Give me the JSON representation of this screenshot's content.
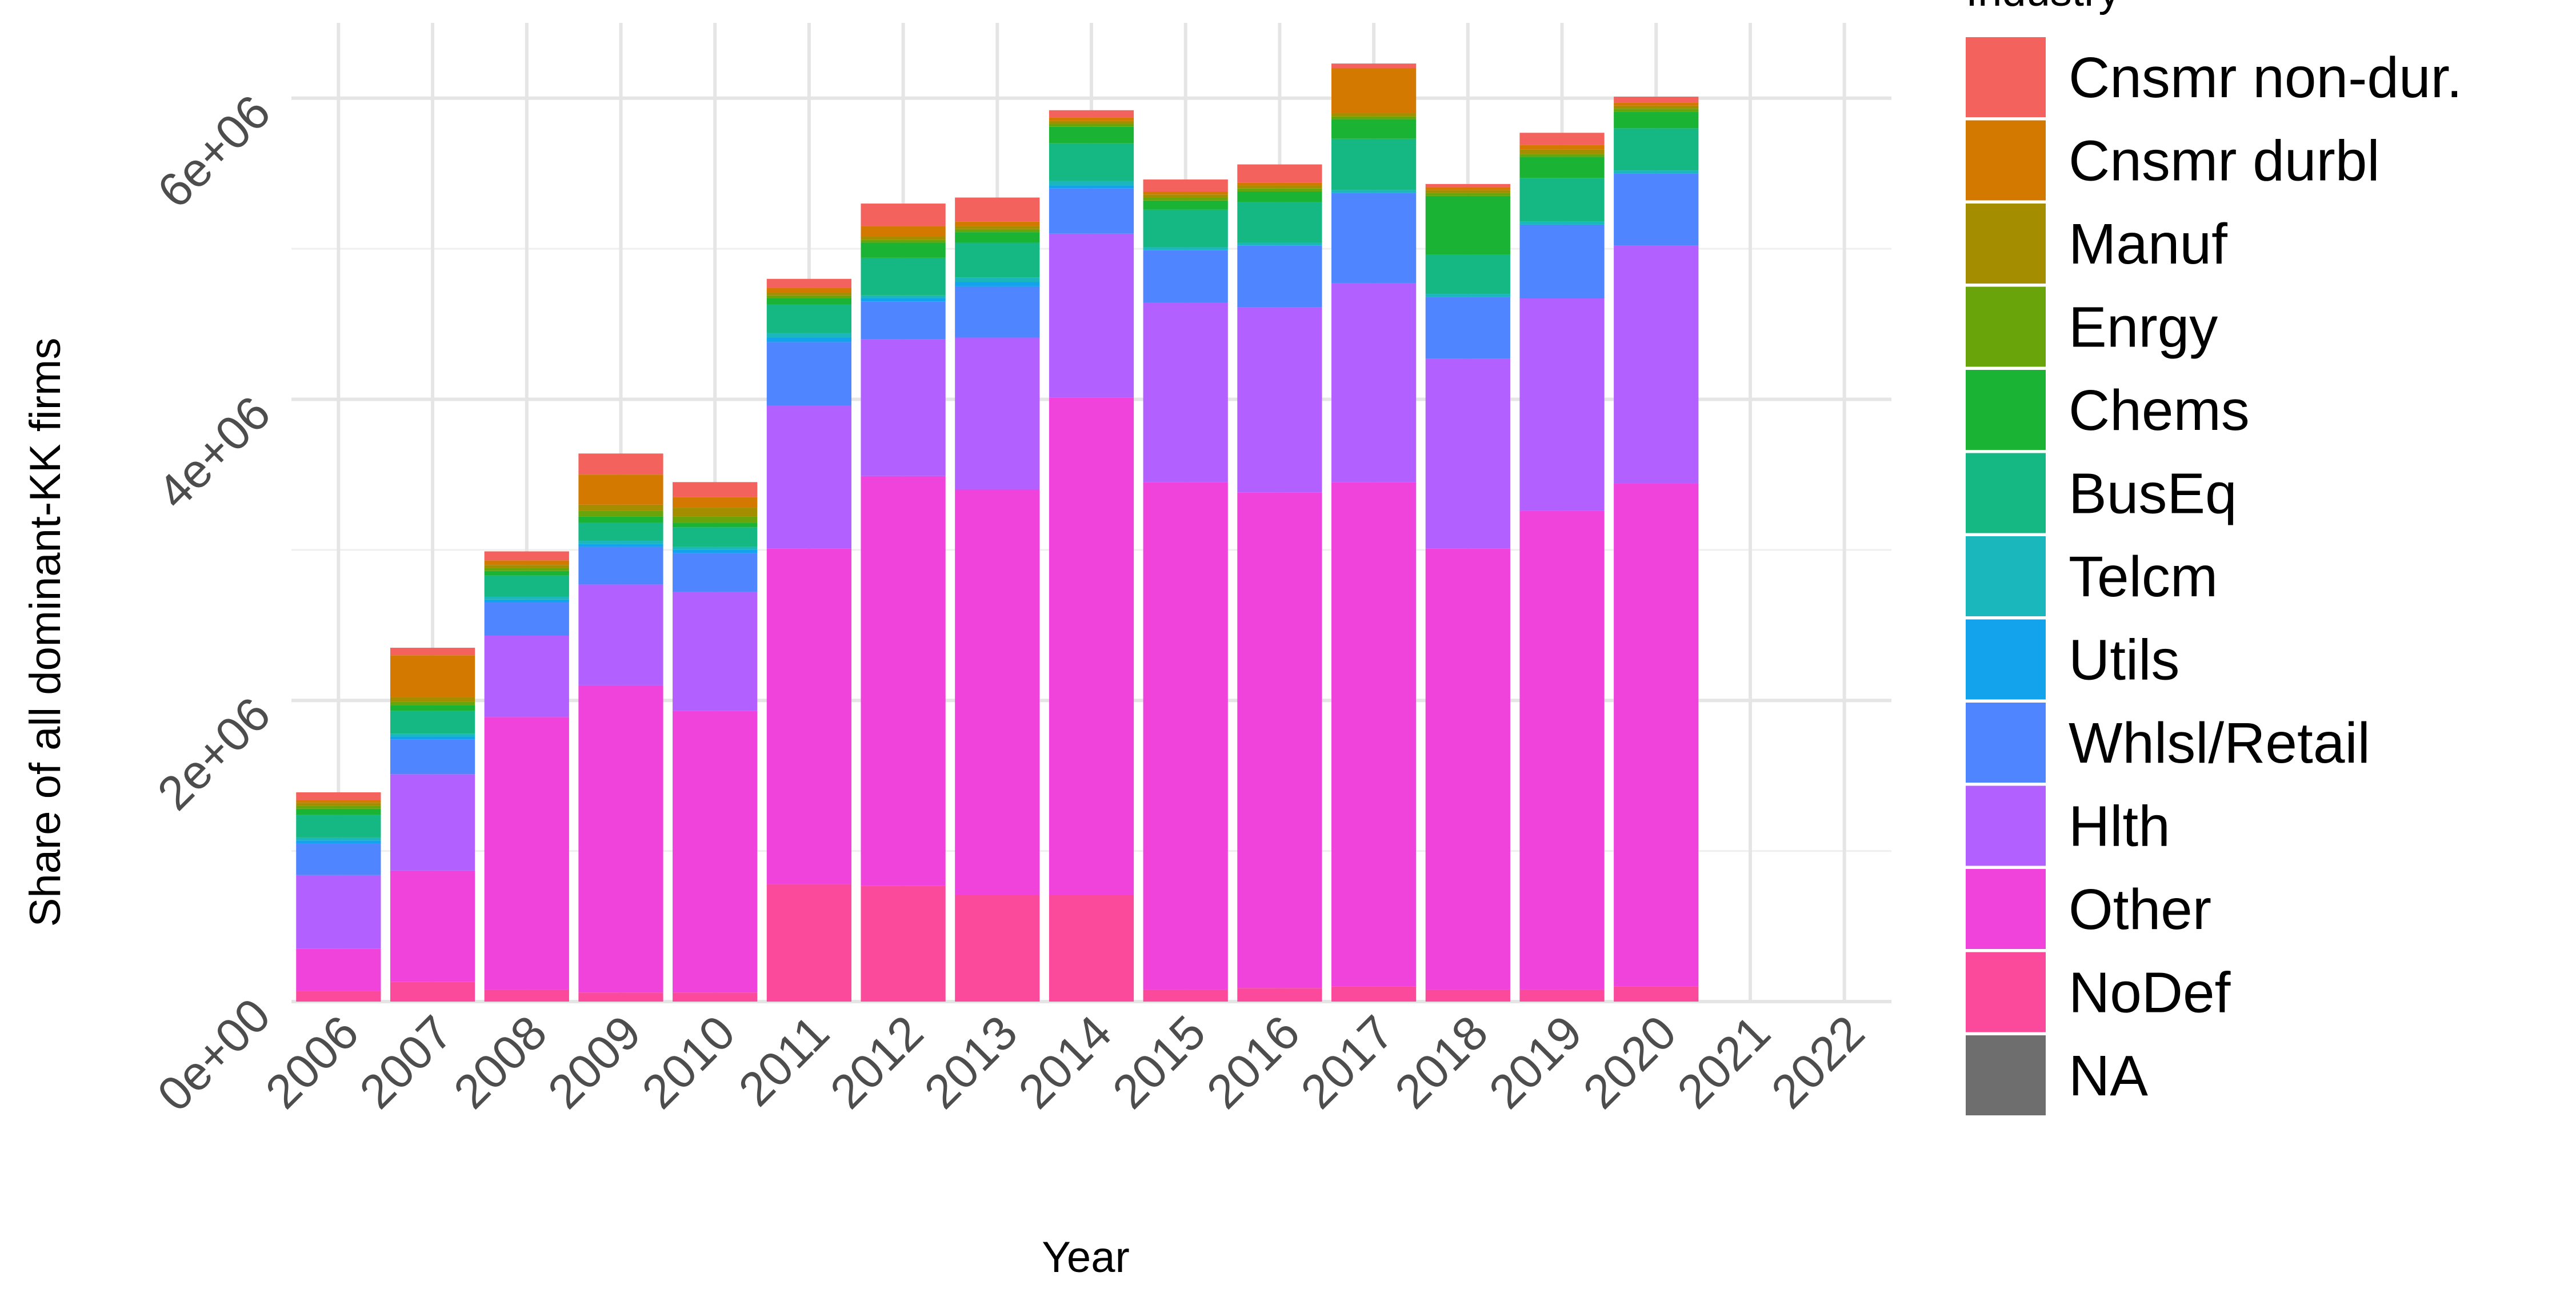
{
  "chart_data": {
    "type": "bar",
    "stacked": true,
    "xlabel": "Year",
    "ylabel": "Share of all dominant-KK firms",
    "ylim": [
      0,
      6500000
    ],
    "y_ticks": [
      0,
      2000000,
      4000000,
      6000000
    ],
    "y_tick_labels": [
      "0e+00",
      "2e+06",
      "4e+06",
      "6e+06"
    ],
    "grid": true,
    "legend_title": "Industry",
    "legend_position": "right",
    "categories": [
      "2006",
      "2007",
      "2008",
      "2009",
      "2010",
      "2011",
      "2012",
      "2013",
      "2014",
      "2015",
      "2016",
      "2017",
      "2018",
      "2019",
      "2020",
      "2021",
      "2022"
    ],
    "series": [
      {
        "name": "NA",
        "color": "#6e6e6e",
        "values": [
          0,
          0,
          0,
          0,
          0,
          0,
          0,
          0,
          0,
          0,
          0,
          0,
          0,
          0,
          0,
          0,
          0
        ]
      },
      {
        "name": "NoDef",
        "color": "#fb4a9b",
        "values": [
          70000,
          130000,
          80000,
          60000,
          60000,
          780000,
          770000,
          710000,
          710000,
          80000,
          90000,
          100000,
          80000,
          80000,
          100000,
          0,
          0
        ]
      },
      {
        "name": "Other",
        "color": "#ef43dc",
        "values": [
          280000,
          740000,
          1810000,
          2040000,
          1870000,
          2230000,
          2720000,
          2690000,
          3300000,
          3370000,
          3290000,
          3350000,
          2930000,
          3180000,
          3340000,
          0,
          0
        ]
      },
      {
        "name": "Hlth",
        "color": "#b260ff",
        "values": [
          490000,
          640000,
          540000,
          670000,
          790000,
          950000,
          910000,
          1010000,
          1090000,
          1190000,
          1230000,
          1320000,
          1260000,
          1410000,
          1580000,
          0,
          0
        ]
      },
      {
        "name": "Whlsl/Retail",
        "color": "#4f85ff",
        "values": [
          210000,
          230000,
          220000,
          250000,
          260000,
          420000,
          250000,
          340000,
          300000,
          350000,
          410000,
          600000,
          410000,
          490000,
          480000,
          0,
          0
        ]
      },
      {
        "name": "Utils",
        "color": "#13a3ed",
        "values": [
          20000,
          20000,
          20000,
          20000,
          20000,
          30000,
          20000,
          30000,
          20000,
          0,
          0,
          0,
          0,
          0,
          0,
          0,
          0
        ]
      },
      {
        "name": "Telcm",
        "color": "#1ab8bd",
        "values": [
          20000,
          20000,
          20000,
          20000,
          20000,
          30000,
          20000,
          30000,
          30000,
          20000,
          20000,
          20000,
          20000,
          20000,
          20000,
          0,
          0
        ]
      },
      {
        "name": "BusEq",
        "color": "#15b783",
        "values": [
          150000,
          150000,
          140000,
          120000,
          130000,
          190000,
          250000,
          230000,
          250000,
          250000,
          270000,
          340000,
          260000,
          290000,
          280000,
          0,
          0
        ]
      },
      {
        "name": "Chems",
        "color": "#1bb334",
        "values": [
          40000,
          40000,
          30000,
          40000,
          30000,
          40000,
          100000,
          70000,
          110000,
          60000,
          70000,
          130000,
          390000,
          140000,
          110000,
          0,
          0
        ]
      },
      {
        "name": "Enrgy",
        "color": "#68a40a",
        "values": [
          20000,
          20000,
          20000,
          40000,
          40000,
          20000,
          20000,
          20000,
          20000,
          20000,
          20000,
          20000,
          20000,
          20000,
          20000,
          0,
          0
        ]
      },
      {
        "name": "Manuf",
        "color": "#a58d00",
        "values": [
          20000,
          30000,
          20000,
          40000,
          60000,
          20000,
          20000,
          20000,
          20000,
          20000,
          20000,
          20000,
          20000,
          30000,
          20000,
          0,
          0
        ]
      },
      {
        "name": "Cnsmr durbl",
        "color": "#d37900",
        "values": [
          20000,
          280000,
          30000,
          200000,
          70000,
          30000,
          70000,
          30000,
          20000,
          20000,
          20000,
          300000,
          20000,
          30000,
          20000,
          0,
          0
        ]
      },
      {
        "name": "Cnsmr non-dur.",
        "color": "#f3625c",
        "values": [
          50000,
          50000,
          60000,
          140000,
          100000,
          60000,
          150000,
          160000,
          50000,
          80000,
          120000,
          30000,
          20000,
          80000,
          40000,
          0,
          0
        ]
      }
    ]
  }
}
